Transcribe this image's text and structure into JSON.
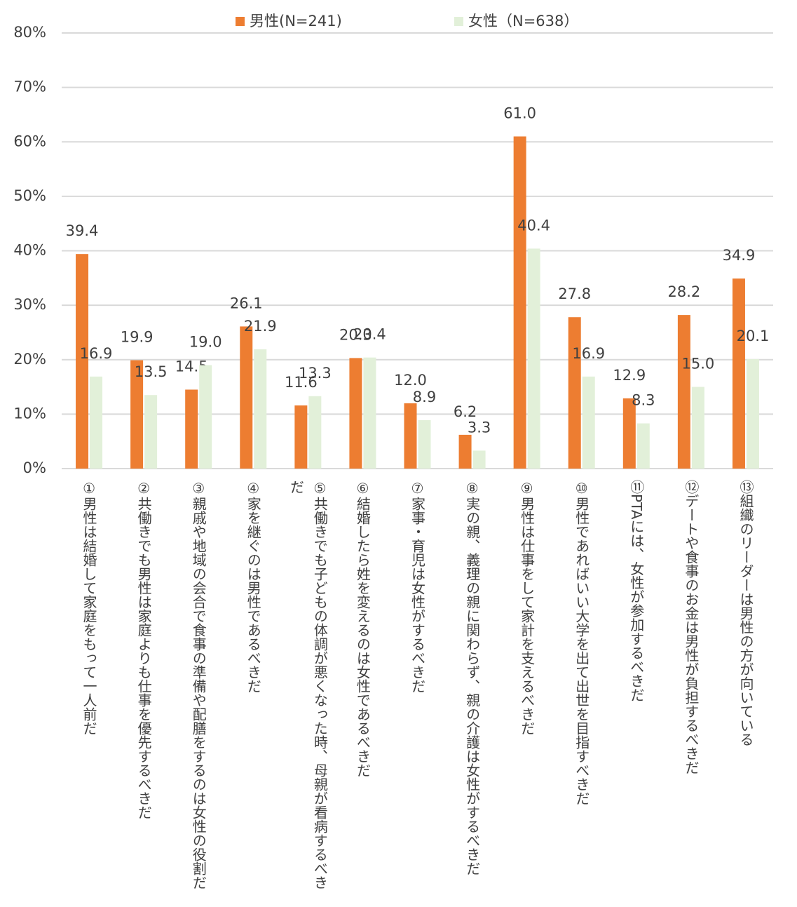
{
  "chart_data": {
    "type": "bar",
    "categories": [
      "①男性は結婚して家庭をもって一人前だ",
      "②共働きでも男性は家庭よりも仕事を優先するべきだ",
      "③親戚や地域の会合で食事の準備や配膳をするのは女性の役割だ",
      "④家を継ぐのは男性であるべきだ",
      "⑤共働きでも子どもの体調が悪くなった時、母親が看病するべきだ",
      "⑥結婚したら姓を変えるのは女性であるべきだ",
      "⑦家事・育児は女性がするべきだ",
      "⑧実の親、義理の親に関わらず、親の介護は女性がするべきだ",
      "⑨男性は仕事をして家計を支えるべきだ",
      "⑩男性であればいい大学を出て出世を目指すべきだ",
      "⑪PTAには、女性が参加するべきだ",
      "⑫デートや食事のお金は男性が負担するべきだ",
      "⑬組織のリーダーは男性の方が向いている"
    ],
    "series": [
      {
        "name": "男性(N=241)",
        "color": "#ed7d31",
        "values": [
          39.4,
          19.9,
          14.5,
          26.1,
          11.6,
          20.3,
          12.0,
          6.2,
          61.0,
          27.8,
          12.9,
          28.2,
          34.9
        ],
        "value_labels": [
          "39.4",
          "19.9",
          "14.5",
          "26.1",
          "11.6",
          "20.3",
          "12.0",
          "6.2",
          "61.0",
          "27.8",
          "12.9",
          "28.2",
          "34.9"
        ]
      },
      {
        "name": "女性（N=638）",
        "color": "#e2f0d9",
        "values": [
          16.9,
          13.5,
          19.0,
          21.9,
          13.3,
          20.4,
          8.9,
          3.3,
          40.4,
          16.9,
          8.3,
          15.0,
          20.1
        ],
        "value_labels": [
          "16.9",
          "13.5",
          "19.0",
          "21.9",
          "13.3",
          "20.4",
          "8.9",
          "3.3",
          "40.4",
          "16.9",
          "8.3",
          "15.0",
          "20.1"
        ]
      }
    ],
    "ylim": [
      0,
      80
    ],
    "yticks": [
      {
        "value": 0,
        "label": "0%"
      },
      {
        "value": 10,
        "label": "10%"
      },
      {
        "value": 20,
        "label": "20%"
      },
      {
        "value": 30,
        "label": "30%"
      },
      {
        "value": 40,
        "label": "40%"
      },
      {
        "value": 50,
        "label": "50%"
      },
      {
        "value": 60,
        "label": "60%"
      },
      {
        "value": 70,
        "label": "70%"
      },
      {
        "value": 80,
        "label": "80%"
      }
    ],
    "grid": true,
    "legend": "top"
  }
}
